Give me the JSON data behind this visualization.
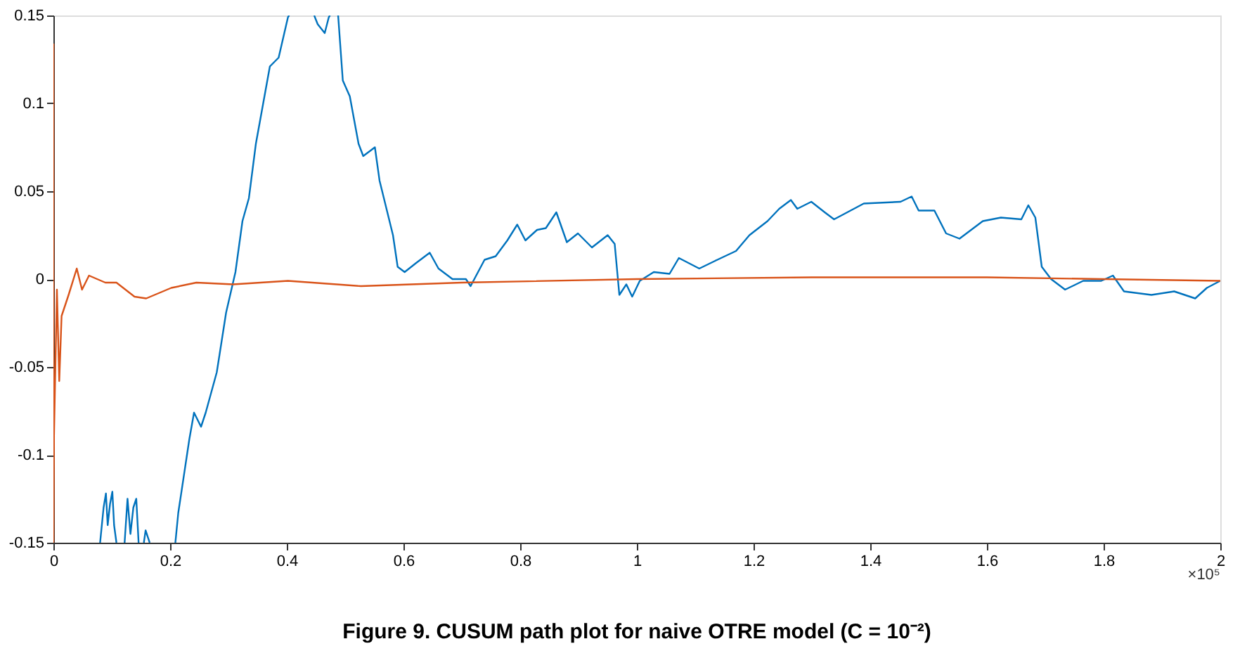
{
  "chart_data": {
    "type": "line",
    "title": "Figure 9. CUSUM path plot for naive OTRE model (C = 10⁻²)",
    "xlim": [
      0,
      2
    ],
    "xticks": [
      0,
      0.2,
      0.4,
      0.6,
      0.8,
      1,
      1.2,
      1.4,
      1.6,
      1.8,
      2
    ],
    "ylim": [
      -0.15,
      0.15
    ],
    "yticks": [
      -0.15,
      -0.1,
      -0.05,
      0,
      0.05,
      0.1,
      0.15
    ],
    "grid": false,
    "legend": false,
    "annotations": [
      "×10⁵"
    ],
    "series": [
      {
        "color": "#0072bd",
        "x": [
          0.08,
          0.086,
          0.09,
          0.093,
          0.097,
          0.101,
          0.104,
          0.108,
          0.115,
          0.122,
          0.127,
          0.132,
          0.137,
          0.142,
          0.146,
          0.15,
          0.155,
          0.158,
          0.165,
          0.19,
          0.209,
          0.214,
          0.233,
          0.241,
          0.253,
          0.261,
          0.28,
          0.296,
          0.312,
          0.324,
          0.335,
          0.347,
          0.371,
          0.386,
          0.402,
          0.404,
          0.43,
          0.447,
          0.453,
          0.465,
          0.472,
          0.474,
          0.48,
          0.488,
          0.496,
          0.508,
          0.523,
          0.531,
          0.551,
          0.559,
          0.582,
          0.59,
          0.602,
          0.621,
          0.645,
          0.66,
          0.684,
          0.707,
          0.715,
          0.739,
          0.758,
          0.778,
          0.795,
          0.809,
          0.829,
          0.844,
          0.862,
          0.88,
          0.899,
          0.923,
          0.95,
          0.962,
          0.97,
          0.982,
          0.992,
          1.005,
          1.029,
          1.056,
          1.072,
          1.107,
          1.138,
          1.17,
          1.193,
          1.224,
          1.244,
          1.264,
          1.275,
          1.299,
          1.322,
          1.338,
          1.389,
          1.452,
          1.471,
          1.483,
          1.51,
          1.53,
          1.553,
          1.593,
          1.624,
          1.659,
          1.671,
          1.683,
          1.694,
          1.71,
          1.734,
          1.765,
          1.796,
          1.816,
          1.835,
          1.882,
          1.921,
          1.957,
          1.977,
          2.0
        ],
        "values": [
          -0.15,
          -0.13,
          -0.122,
          -0.14,
          -0.128,
          -0.121,
          -0.14,
          -0.15,
          null,
          -0.15,
          -0.125,
          -0.145,
          -0.13,
          -0.125,
          -0.15,
          null,
          -0.15,
          -0.143,
          -0.15,
          null,
          -0.15,
          -0.133,
          -0.091,
          -0.076,
          -0.084,
          -0.076,
          -0.053,
          -0.019,
          0.004,
          0.033,
          0.046,
          0.077,
          0.121,
          0.126,
          0.149,
          0.15,
          null,
          0.15,
          0.145,
          0.14,
          0.149,
          0.15,
          null,
          0.15,
          0.113,
          0.104,
          0.077,
          0.07,
          0.075,
          0.056,
          0.025,
          0.007,
          0.004,
          0.009,
          0.015,
          0.006,
          0.0,
          0.0,
          -0.004,
          0.011,
          0.013,
          0.022,
          0.031,
          0.022,
          0.028,
          0.029,
          0.038,
          0.021,
          0.026,
          0.018,
          0.025,
          0.02,
          -0.009,
          -0.003,
          -0.01,
          -0.001,
          0.004,
          0.003,
          0.012,
          0.006,
          0.011,
          0.016,
          0.025,
          0.033,
          0.04,
          0.045,
          0.04,
          0.044,
          0.038,
          0.034,
          0.043,
          0.044,
          0.047,
          0.039,
          0.039,
          0.026,
          0.023,
          0.033,
          0.035,
          0.034,
          0.042,
          0.035,
          0.007,
          0.0,
          -0.006,
          -0.001,
          -0.001,
          0.002,
          -0.007,
          -0.009,
          -0.007,
          -0.011,
          -0.005,
          -0.001
        ]
      },
      {
        "color": "#d95319",
        "x": [
          0.0,
          0.0,
          0.001,
          0.006,
          0.01,
          0.014,
          0.026,
          0.04,
          0.049,
          0.061,
          0.089,
          0.108,
          0.139,
          0.159,
          0.202,
          0.245,
          0.308,
          0.402,
          0.527,
          0.7,
          1.0,
          1.3,
          1.6,
          1.8,
          2.0
        ],
        "values": [
          0.134,
          -0.15,
          -0.089,
          -0.006,
          -0.058,
          -0.021,
          -0.009,
          0.006,
          -0.006,
          0.002,
          -0.002,
          -0.002,
          -0.01,
          -0.011,
          -0.005,
          -0.002,
          -0.003,
          -0.001,
          -0.004,
          -0.002,
          0.0,
          0.001,
          0.001,
          0.0,
          -0.001
        ]
      }
    ]
  }
}
